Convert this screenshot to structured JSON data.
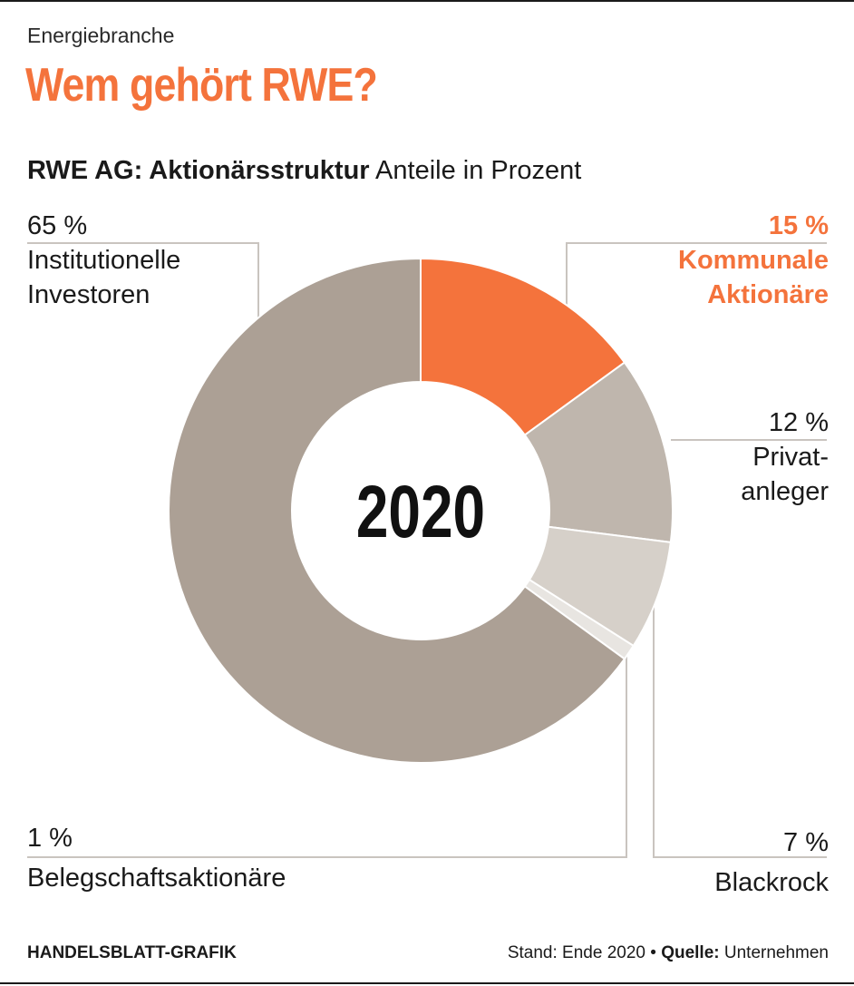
{
  "header": {
    "kicker": "Energiebranche",
    "title": "Wem gehört RWE?",
    "subtitle_bold": "RWE AG: Aktionärsstruktur",
    "subtitle_rest": " Anteile in Prozent"
  },
  "chart_data": {
    "type": "pie",
    "variant": "donut",
    "center_label": "2020",
    "title": "RWE AG: Aktionärsstruktur",
    "unit": "Anteile in Prozent",
    "slices": [
      {
        "pct_label": "15 %",
        "name_lines": [
          "Kommunale",
          "Aktionäre"
        ],
        "value": 15,
        "color": "#f4733c",
        "highlight": true
      },
      {
        "pct_label": "12 %",
        "name_lines": [
          "Privat-",
          "anleger"
        ],
        "value": 12,
        "color": "#bfb6ad",
        "highlight": false
      },
      {
        "pct_label": "7 %",
        "name_lines": [
          "Blackrock"
        ],
        "value": 7,
        "color": "#d6d0c9",
        "highlight": false
      },
      {
        "pct_label": "1 %",
        "name_lines": [
          "Belegschaftsaktionäre"
        ],
        "value": 1,
        "color": "#e8e5e1",
        "highlight": false
      },
      {
        "pct_label": "65 %",
        "name_lines": [
          "Institutionelle",
          "Investoren"
        ],
        "value": 65,
        "color": "#aca095",
        "highlight": false
      }
    ],
    "colors": {
      "highlight_text": "#f4733c",
      "leader_line": "#c9c4bf"
    }
  },
  "footer": {
    "source_brand": "HANDELSBLATT-GRAFIK",
    "stand": "Stand: Ende 2020",
    "bullet": "•",
    "quelle_label": "Quelle:",
    "quelle_value": "Unternehmen"
  }
}
